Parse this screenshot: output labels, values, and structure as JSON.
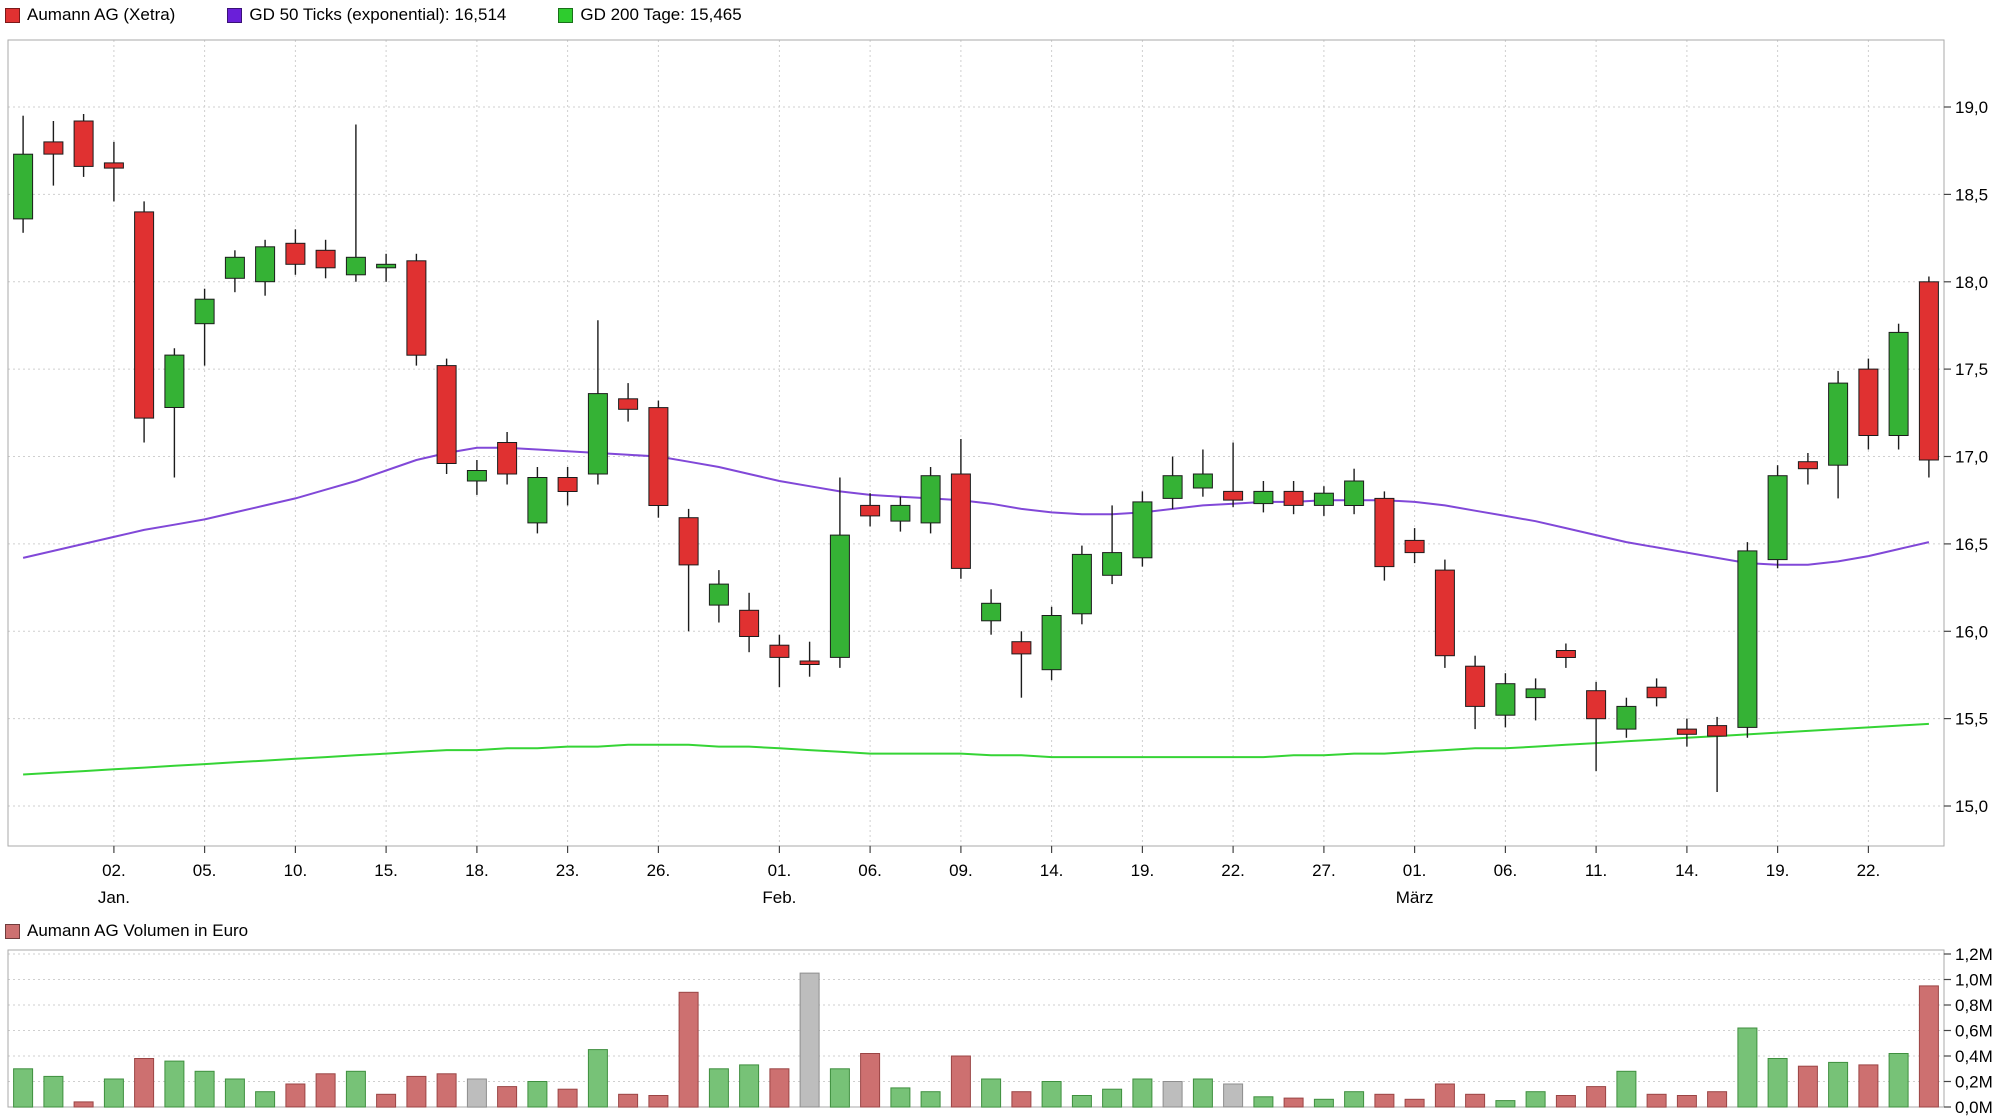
{
  "legend": {
    "items": [
      {
        "label": "Aumann AG (Xetra)",
        "color": "#e03131"
      },
      {
        "label": "GD 50 Ticks (exponential): 16,514",
        "color": "#6a1fd9"
      },
      {
        "label": "GD 200 Tage: 15,465",
        "color": "#2ecc2e"
      }
    ]
  },
  "volume_legend": {
    "label": "Aumann AG Volumen in Euro",
    "color": "#cd7070"
  },
  "chart_data": {
    "type": "candlestick",
    "title": "Aumann AG (Xetra)",
    "subtitle": "",
    "legend_position": "top-left",
    "grid": true,
    "price_axis": {
      "side": "right",
      "min": 14.77,
      "max": 19.38,
      "levels": [
        {
          "v": 19.0,
          "label": "19,0"
        },
        {
          "v": 18.5,
          "label": "18,5"
        },
        {
          "v": 18.0,
          "label": "18,0"
        },
        {
          "v": 17.5,
          "label": "17,5"
        },
        {
          "v": 17.0,
          "label": "17,0"
        },
        {
          "v": 16.5,
          "label": "16,5"
        },
        {
          "v": 16.0,
          "label": "16,0"
        },
        {
          "v": 15.5,
          "label": "15,5"
        },
        {
          "v": 15.0,
          "label": "15,0"
        }
      ]
    },
    "x_ticks": [
      {
        "i": 3,
        "day": "02.",
        "month": "Jan."
      },
      {
        "i": 6,
        "day": "05."
      },
      {
        "i": 9,
        "day": "10."
      },
      {
        "i": 12,
        "day": "15."
      },
      {
        "i": 15,
        "day": "18."
      },
      {
        "i": 18,
        "day": "23."
      },
      {
        "i": 21,
        "day": "26."
      },
      {
        "i": 25,
        "day": "01.",
        "month": "Feb."
      },
      {
        "i": 28,
        "day": "06."
      },
      {
        "i": 31,
        "day": "09."
      },
      {
        "i": 34,
        "day": "14."
      },
      {
        "i": 37,
        "day": "19."
      },
      {
        "i": 40,
        "day": "22."
      },
      {
        "i": 43,
        "day": "27."
      },
      {
        "i": 46,
        "day": "01.",
        "month": "März"
      },
      {
        "i": 49,
        "day": "06."
      },
      {
        "i": 52,
        "day": "11."
      },
      {
        "i": 55,
        "day": "14."
      },
      {
        "i": 58,
        "day": "19."
      },
      {
        "i": 61,
        "day": "22."
      }
    ],
    "candles": [
      [
        18.36,
        18.95,
        18.28,
        18.73
      ],
      [
        18.8,
        18.92,
        18.55,
        18.73
      ],
      [
        18.92,
        18.96,
        18.6,
        18.66
      ],
      [
        18.68,
        18.8,
        18.46,
        18.65
      ],
      [
        18.4,
        18.46,
        17.08,
        17.22
      ],
      [
        17.28,
        17.62,
        16.88,
        17.58
      ],
      [
        17.76,
        17.96,
        17.52,
        17.9
      ],
      [
        18.02,
        18.18,
        17.94,
        18.14
      ],
      [
        18.0,
        18.24,
        17.92,
        18.2
      ],
      [
        18.22,
        18.3,
        18.04,
        18.1
      ],
      [
        18.18,
        18.24,
        18.02,
        18.08
      ],
      [
        18.04,
        18.9,
        18.0,
        18.14
      ],
      [
        18.08,
        18.16,
        18.0,
        18.1
      ],
      [
        18.12,
        18.16,
        17.52,
        17.58
      ],
      [
        17.52,
        17.56,
        16.9,
        16.96
      ],
      [
        16.86,
        16.98,
        16.78,
        16.92
      ],
      [
        17.08,
        17.14,
        16.84,
        16.9
      ],
      [
        16.62,
        16.94,
        16.56,
        16.88
      ],
      [
        16.88,
        16.94,
        16.72,
        16.8
      ],
      [
        16.9,
        17.78,
        16.84,
        17.36
      ],
      [
        17.33,
        17.42,
        17.2,
        17.27
      ],
      [
        17.28,
        17.32,
        16.65,
        16.72
      ],
      [
        16.65,
        16.7,
        16.0,
        16.38
      ],
      [
        16.15,
        16.35,
        16.05,
        16.27
      ],
      [
        16.12,
        16.22,
        15.88,
        15.97
      ],
      [
        15.92,
        15.98,
        15.68,
        15.85
      ],
      [
        15.83,
        15.94,
        15.74,
        15.81
      ],
      [
        15.85,
        16.88,
        15.79,
        16.55
      ],
      [
        16.72,
        16.79,
        16.6,
        16.66
      ],
      [
        16.63,
        16.77,
        16.57,
        16.72
      ],
      [
        16.62,
        16.94,
        16.56,
        16.89
      ],
      [
        16.9,
        17.1,
        16.3,
        16.36
      ],
      [
        16.06,
        16.24,
        15.98,
        16.16
      ],
      [
        15.94,
        16.0,
        15.62,
        15.87
      ],
      [
        15.78,
        16.14,
        15.72,
        16.09
      ],
      [
        16.1,
        16.49,
        16.04,
        16.44
      ],
      [
        16.32,
        16.72,
        16.27,
        16.45
      ],
      [
        16.42,
        16.8,
        16.37,
        16.74
      ],
      [
        16.76,
        17.0,
        16.7,
        16.89
      ],
      [
        16.82,
        17.04,
        16.77,
        16.9
      ],
      [
        16.8,
        17.08,
        16.71,
        16.75
      ],
      [
        16.73,
        16.86,
        16.68,
        16.8
      ],
      [
        16.8,
        16.86,
        16.67,
        16.72
      ],
      [
        16.72,
        16.83,
        16.66,
        16.79
      ],
      [
        16.72,
        16.93,
        16.67,
        16.86
      ],
      [
        16.76,
        16.8,
        16.29,
        16.37
      ],
      [
        16.52,
        16.59,
        16.39,
        16.45
      ],
      [
        16.35,
        16.41,
        15.79,
        15.86
      ],
      [
        15.8,
        15.86,
        15.44,
        15.57
      ],
      [
        15.52,
        15.76,
        15.45,
        15.7
      ],
      [
        15.62,
        15.73,
        15.49,
        15.67
      ],
      [
        15.89,
        15.93,
        15.79,
        15.85
      ],
      [
        15.66,
        15.71,
        15.2,
        15.5
      ],
      [
        15.44,
        15.62,
        15.39,
        15.57
      ],
      [
        15.68,
        15.73,
        15.57,
        15.62
      ],
      [
        15.44,
        15.5,
        15.34,
        15.41
      ],
      [
        15.46,
        15.51,
        15.08,
        15.4
      ],
      [
        15.45,
        16.51,
        15.39,
        16.46
      ],
      [
        16.41,
        16.95,
        16.36,
        16.89
      ],
      [
        16.97,
        17.02,
        16.84,
        16.93
      ],
      [
        16.95,
        17.49,
        16.76,
        17.42
      ],
      [
        17.5,
        17.56,
        17.04,
        17.12
      ],
      [
        17.12,
        17.76,
        17.04,
        17.71
      ],
      [
        18.0,
        18.03,
        16.88,
        16.98
      ]
    ],
    "gd50": [
      16.42,
      16.46,
      16.5,
      16.54,
      16.58,
      16.61,
      16.64,
      16.68,
      16.72,
      16.76,
      16.81,
      16.86,
      16.92,
      16.98,
      17.02,
      17.05,
      17.05,
      17.04,
      17.03,
      17.02,
      17.01,
      17.0,
      16.97,
      16.94,
      16.9,
      16.86,
      16.83,
      16.8,
      16.78,
      16.77,
      16.76,
      16.75,
      16.73,
      16.7,
      16.68,
      16.67,
      16.67,
      16.68,
      16.7,
      16.72,
      16.73,
      16.74,
      16.74,
      16.75,
      16.75,
      16.75,
      16.74,
      16.72,
      16.69,
      16.66,
      16.63,
      16.59,
      16.55,
      16.51,
      16.48,
      16.45,
      16.42,
      16.39,
      16.38,
      16.38,
      16.4,
      16.43,
      16.47,
      16.51
    ],
    "gd200": [
      15.18,
      15.19,
      15.2,
      15.21,
      15.22,
      15.23,
      15.24,
      15.25,
      15.26,
      15.27,
      15.28,
      15.29,
      15.3,
      15.31,
      15.32,
      15.32,
      15.33,
      15.33,
      15.34,
      15.34,
      15.35,
      15.35,
      15.35,
      15.34,
      15.34,
      15.33,
      15.32,
      15.31,
      15.3,
      15.3,
      15.3,
      15.3,
      15.29,
      15.29,
      15.28,
      15.28,
      15.28,
      15.28,
      15.28,
      15.28,
      15.28,
      15.28,
      15.29,
      15.29,
      15.3,
      15.3,
      15.31,
      15.32,
      15.33,
      15.33,
      15.34,
      15.35,
      15.36,
      15.37,
      15.38,
      15.39,
      15.4,
      15.41,
      15.42,
      15.43,
      15.44,
      15.45,
      15.46,
      15.47
    ],
    "volumes": [
      [
        0.3,
        "g"
      ],
      [
        0.24,
        "g"
      ],
      [
        0.04,
        "r"
      ],
      [
        0.22,
        "g"
      ],
      [
        0.38,
        "r"
      ],
      [
        0.36,
        "g"
      ],
      [
        0.28,
        "g"
      ],
      [
        0.22,
        "g"
      ],
      [
        0.12,
        "g"
      ],
      [
        0.18,
        "r"
      ],
      [
        0.26,
        "r"
      ],
      [
        0.28,
        "g"
      ],
      [
        0.1,
        "r"
      ],
      [
        0.24,
        "r"
      ],
      [
        0.26,
        "r"
      ],
      [
        0.22,
        "x"
      ],
      [
        0.16,
        "r"
      ],
      [
        0.2,
        "g"
      ],
      [
        0.14,
        "r"
      ],
      [
        0.45,
        "g"
      ],
      [
        0.1,
        "r"
      ],
      [
        0.09,
        "r"
      ],
      [
        0.9,
        "r"
      ],
      [
        0.3,
        "g"
      ],
      [
        0.33,
        "g"
      ],
      [
        0.3,
        "r"
      ],
      [
        1.05,
        "x"
      ],
      [
        0.3,
        "g"
      ],
      [
        0.42,
        "r"
      ],
      [
        0.15,
        "g"
      ],
      [
        0.12,
        "g"
      ],
      [
        0.4,
        "r"
      ],
      [
        0.22,
        "g"
      ],
      [
        0.12,
        "r"
      ],
      [
        0.2,
        "g"
      ],
      [
        0.09,
        "g"
      ],
      [
        0.14,
        "g"
      ],
      [
        0.22,
        "g"
      ],
      [
        0.2,
        "x"
      ],
      [
        0.22,
        "g"
      ],
      [
        0.18,
        "x"
      ],
      [
        0.08,
        "g"
      ],
      [
        0.07,
        "r"
      ],
      [
        0.06,
        "g"
      ],
      [
        0.12,
        "g"
      ],
      [
        0.1,
        "r"
      ],
      [
        0.06,
        "r"
      ],
      [
        0.18,
        "r"
      ],
      [
        0.1,
        "r"
      ],
      [
        0.05,
        "g"
      ],
      [
        0.12,
        "g"
      ],
      [
        0.09,
        "r"
      ],
      [
        0.16,
        "r"
      ],
      [
        0.28,
        "g"
      ],
      [
        0.1,
        "r"
      ],
      [
        0.09,
        "r"
      ],
      [
        0.12,
        "r"
      ],
      [
        0.62,
        "g"
      ],
      [
        0.38,
        "g"
      ],
      [
        0.32,
        "r"
      ],
      [
        0.35,
        "g"
      ],
      [
        0.33,
        "r"
      ],
      [
        0.42,
        "g"
      ],
      [
        0.95,
        "r"
      ]
    ],
    "volume_axis": {
      "side": "right",
      "max": 1.2,
      "levels": [
        {
          "v": 1.2,
          "label": "1,2M"
        },
        {
          "v": 1.0,
          "label": "1,0M"
        },
        {
          "v": 0.8,
          "label": "0,8M"
        },
        {
          "v": 0.6,
          "label": "0,6M"
        },
        {
          "v": 0.4,
          "label": "0,4M"
        },
        {
          "v": 0.2,
          "label": "0,2M"
        },
        {
          "v": 0.0,
          "label": "0,0M"
        }
      ]
    },
    "colors": {
      "up": "#35b235",
      "down": "#e03131",
      "wick": "#1c1c1c",
      "gd50": "#8148d8",
      "gd200": "#35d435",
      "vol_up": "#77c277",
      "vol_up_stroke": "#3f8f3f",
      "vol_down": "#cd7070",
      "vol_down_stroke": "#9b4545",
      "vol_neutral": "#bdbdbd",
      "vol_neutral_stroke": "#8e8e8e",
      "grid": "#cfcfcf",
      "frame": "#aaaaaa",
      "tick": "#444444"
    }
  }
}
